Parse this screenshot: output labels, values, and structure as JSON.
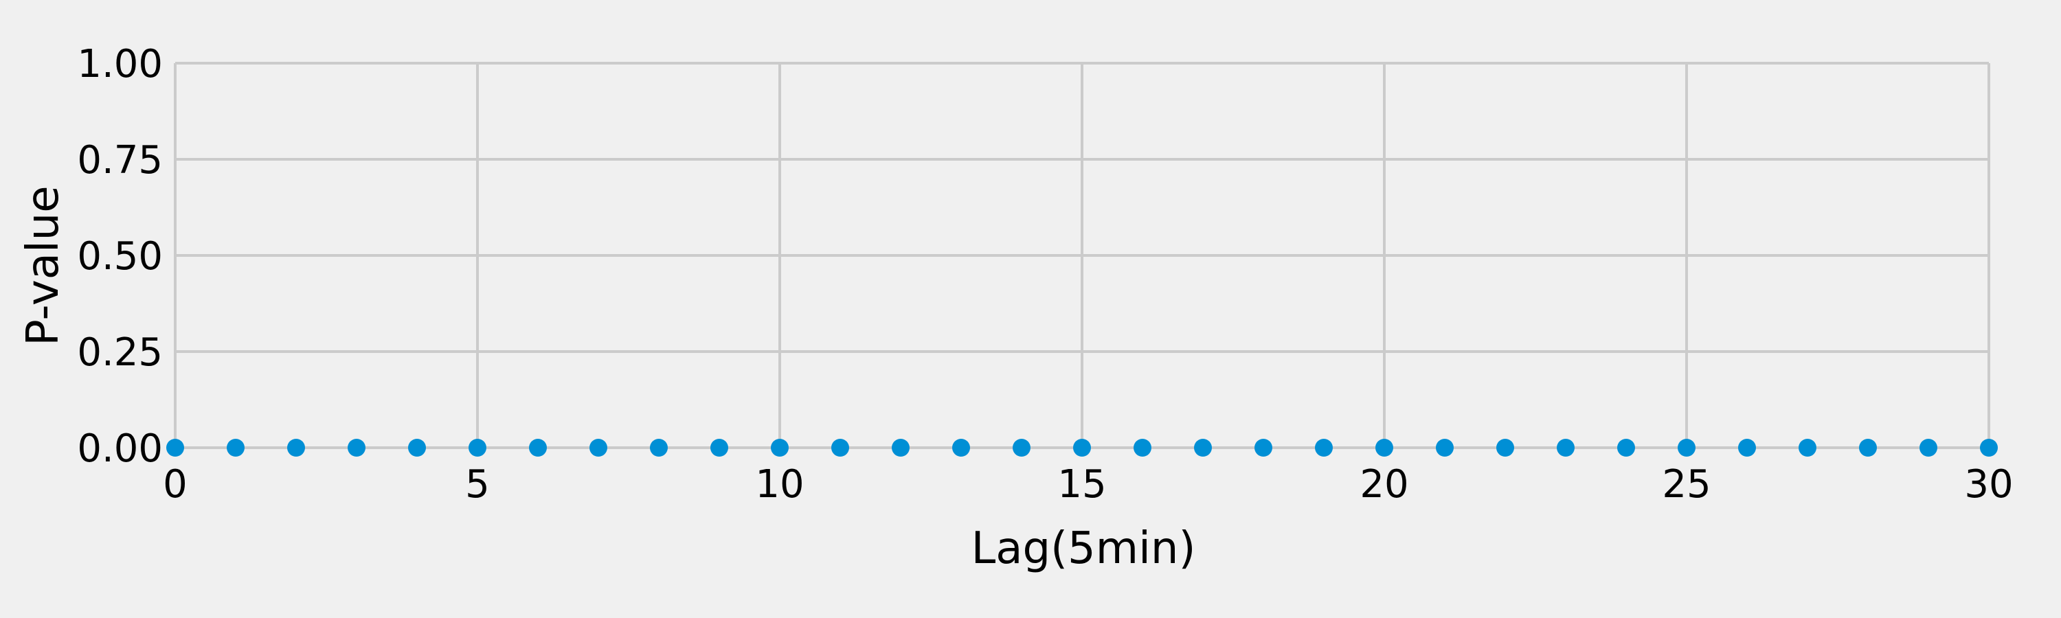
{
  "chart_data": {
    "type": "scatter",
    "title": "",
    "xlabel": "Lag(5min)",
    "ylabel": "P-value",
    "xlim": [
      0,
      30
    ],
    "ylim": [
      0,
      1
    ],
    "xticks": [
      0,
      5,
      10,
      15,
      20,
      25,
      30
    ],
    "yticks": [
      0.0,
      0.25,
      0.5,
      0.75,
      1.0
    ],
    "xtick_labels": [
      "0",
      "5",
      "10",
      "15",
      "20",
      "25",
      "30"
    ],
    "ytick_labels": [
      "0.00",
      "0.25",
      "0.50",
      "0.75",
      "1.00"
    ],
    "grid": true,
    "series": [
      {
        "color": "#008fd5",
        "x": [
          0,
          1,
          2,
          3,
          4,
          5,
          6,
          7,
          8,
          9,
          10,
          11,
          12,
          13,
          14,
          15,
          16,
          17,
          18,
          19,
          20,
          21,
          22,
          23,
          24,
          25,
          26,
          27,
          28,
          29,
          30
        ],
        "y": [
          0,
          0,
          0,
          0,
          0,
          0,
          0,
          0,
          0,
          0,
          0,
          0,
          0,
          0,
          0,
          0,
          0,
          0,
          0,
          0,
          0,
          0,
          0,
          0,
          0,
          0,
          0,
          0,
          0,
          0,
          0
        ]
      }
    ]
  }
}
